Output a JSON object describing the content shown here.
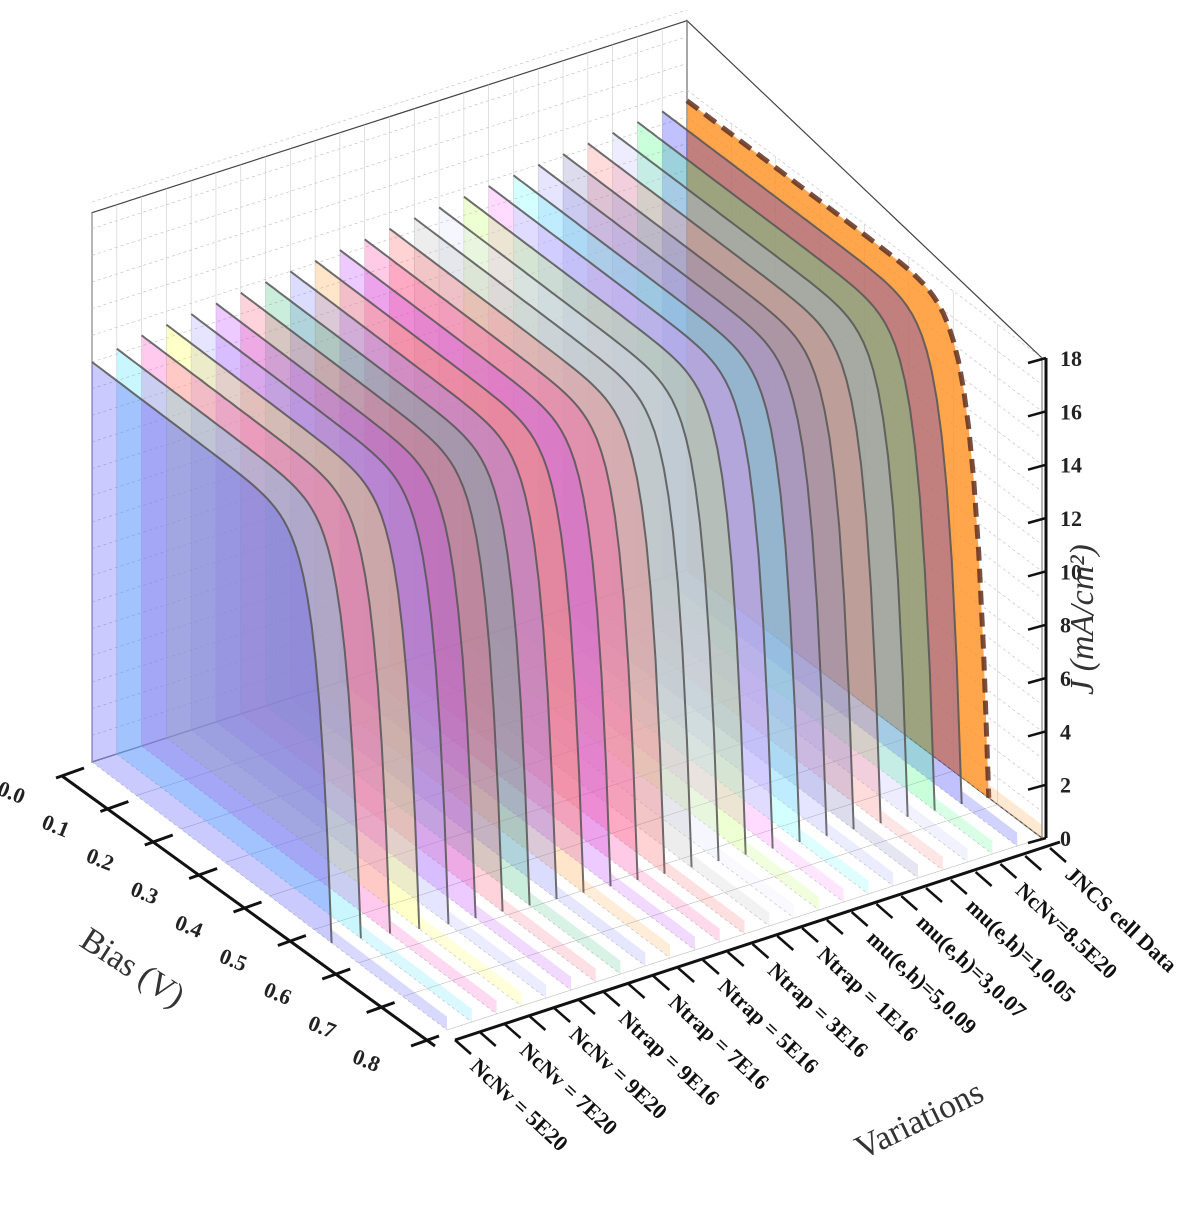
{
  "chart_data": {
    "type": "3d-waterfall",
    "title": "",
    "x_axis": {
      "label": "Bias (V)",
      "range": [
        0.0,
        0.8
      ],
      "ticks": [
        "0.0",
        "0.1",
        "0.2",
        "0.3",
        "0.4",
        "0.5",
        "0.6",
        "0.7",
        "0.8"
      ]
    },
    "y_axis": {
      "label": "Variations",
      "tick_labels": [
        "NcNv = 5E20",
        "NcNv = 7E20",
        "NcNv = 9E20",
        "Ntrap = 9E16",
        "Ntrap = 7E16",
        "Ntrap = 5E16",
        "Ntrap = 3E16",
        "Ntrap = 1E16",
        "mu(e,h)=5,0.09",
        "mu(e,h)=3,0.07",
        "mu(e,h)=1,0.05",
        "NcNv=8.5E20",
        "JNCS cell Data"
      ]
    },
    "z_axis": {
      "label": "J (mA/cm²)",
      "range": [
        0,
        18
      ],
      "ticks": [
        "0",
        "2",
        "4",
        "6",
        "8",
        "10",
        "12",
        "14",
        "16",
        "18"
      ]
    },
    "grid": true,
    "series_count": 25,
    "series": [
      {
        "color": "#4040ff",
        "jsc": 15.0,
        "voc": 0.54
      },
      {
        "color": "#40e0ff",
        "jsc": 15.2,
        "voc": 0.55
      },
      {
        "color": "#ff40c0",
        "jsc": 15.4,
        "voc": 0.56
      },
      {
        "color": "#ffff40",
        "jsc": 15.5,
        "voc": 0.57
      },
      {
        "color": "#a0a0ff",
        "jsc": 15.6,
        "voc": 0.58
      },
      {
        "color": "#c040ff",
        "jsc": 15.7,
        "voc": 0.585
      },
      {
        "color": "#ff6080",
        "jsc": 15.8,
        "voc": 0.59
      },
      {
        "color": "#40c080",
        "jsc": 15.9,
        "voc": 0.595
      },
      {
        "color": "#8080ff",
        "jsc": 16.0,
        "voc": 0.6
      },
      {
        "color": "#ffa040",
        "jsc": 16.1,
        "voc": 0.605
      },
      {
        "color": "#c040ff",
        "jsc": 16.2,
        "voc": 0.61
      },
      {
        "color": "#ff40a0",
        "jsc": 16.3,
        "voc": 0.615
      },
      {
        "color": "#ff6060",
        "jsc": 16.4,
        "voc": 0.62
      },
      {
        "color": "#c0c0c0",
        "jsc": 16.5,
        "voc": 0.625
      },
      {
        "color": "#e0e0ff",
        "jsc": 16.6,
        "voc": 0.63
      },
      {
        "color": "#c0ff60",
        "jsc": 16.7,
        "voc": 0.635
      },
      {
        "color": "#ff80ff",
        "jsc": 16.8,
        "voc": 0.64
      },
      {
        "color": "#60ffff",
        "jsc": 16.9,
        "voc": 0.645
      },
      {
        "color": "#a0a0ff",
        "jsc": 17.0,
        "voc": 0.65
      },
      {
        "color": "#8080c0",
        "jsc": 17.1,
        "voc": 0.655
      },
      {
        "color": "#ff8080",
        "jsc": 17.2,
        "voc": 0.66
      },
      {
        "color": "#c0c0ff",
        "jsc": 17.3,
        "voc": 0.665
      },
      {
        "color": "#40ff80",
        "jsc": 17.4,
        "voc": 0.67
      },
      {
        "color": "#2020ff",
        "jsc": 17.5,
        "voc": 0.675
      },
      {
        "color": "#ff9020",
        "jsc": 17.6,
        "voc": 0.68
      }
    ],
    "highlight": {
      "color": "#ff9020",
      "edge": "#603020",
      "style": "dashed"
    }
  }
}
